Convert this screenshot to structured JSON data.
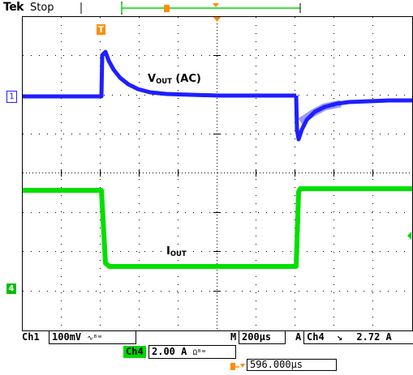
{
  "header": {
    "brand": "Tek",
    "status": "Stop"
  },
  "annotations": {
    "vout_main": "V",
    "vout_sub": "OUT",
    "vout_suffix": " (AC)",
    "iout_main": "I",
    "iout_sub": "OUT"
  },
  "markers": {
    "trigger": "T",
    "ch1": "1",
    "ch4": "4"
  },
  "readouts": {
    "ch1_label": "Ch1",
    "ch1_scale": "100mV",
    "ch1_coupling": "∿ᴮʷ",
    "ch4_label": "Ch4",
    "ch4_scale": "2.00 A",
    "ch4_coupling": "Ωᴮʷ",
    "timebase_label": "M",
    "timebase_value": "200µs",
    "trigger_label": "A",
    "trigger_source": "Ch4",
    "trigger_slope": "↘",
    "trigger_level": "2.72 A",
    "delay_value": "596.000µs"
  },
  "colors": {
    "ch1": "#1f1fff",
    "ch4": "#00e000",
    "trigger": "#ff8c00",
    "grid": "#000000"
  }
}
